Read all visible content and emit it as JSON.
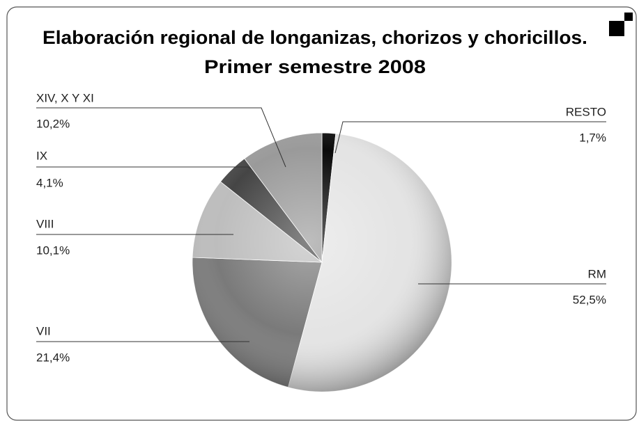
{
  "chart_data": {
    "type": "pie",
    "title": "Elaboración regional de longanizas, chorizos y choricillos.",
    "subtitle": "Primer semestre 2008",
    "categories": [
      "RESTO",
      "RM",
      "VII",
      "VIII",
      "IX",
      "XIV, X Y XI"
    ],
    "values": [
      1.7,
      52.5,
      21.4,
      10.1,
      4.1,
      10.2
    ],
    "value_labels": [
      "1,7%",
      "52,5%",
      "21,4%",
      "10,1%",
      "4,1%",
      "10,2%"
    ],
    "colors": [
      "#0a0a0a",
      "#e4e4e4",
      "#7a7a7a",
      "#bdbdbd",
      "#454545",
      "#9a9a9a"
    ]
  }
}
